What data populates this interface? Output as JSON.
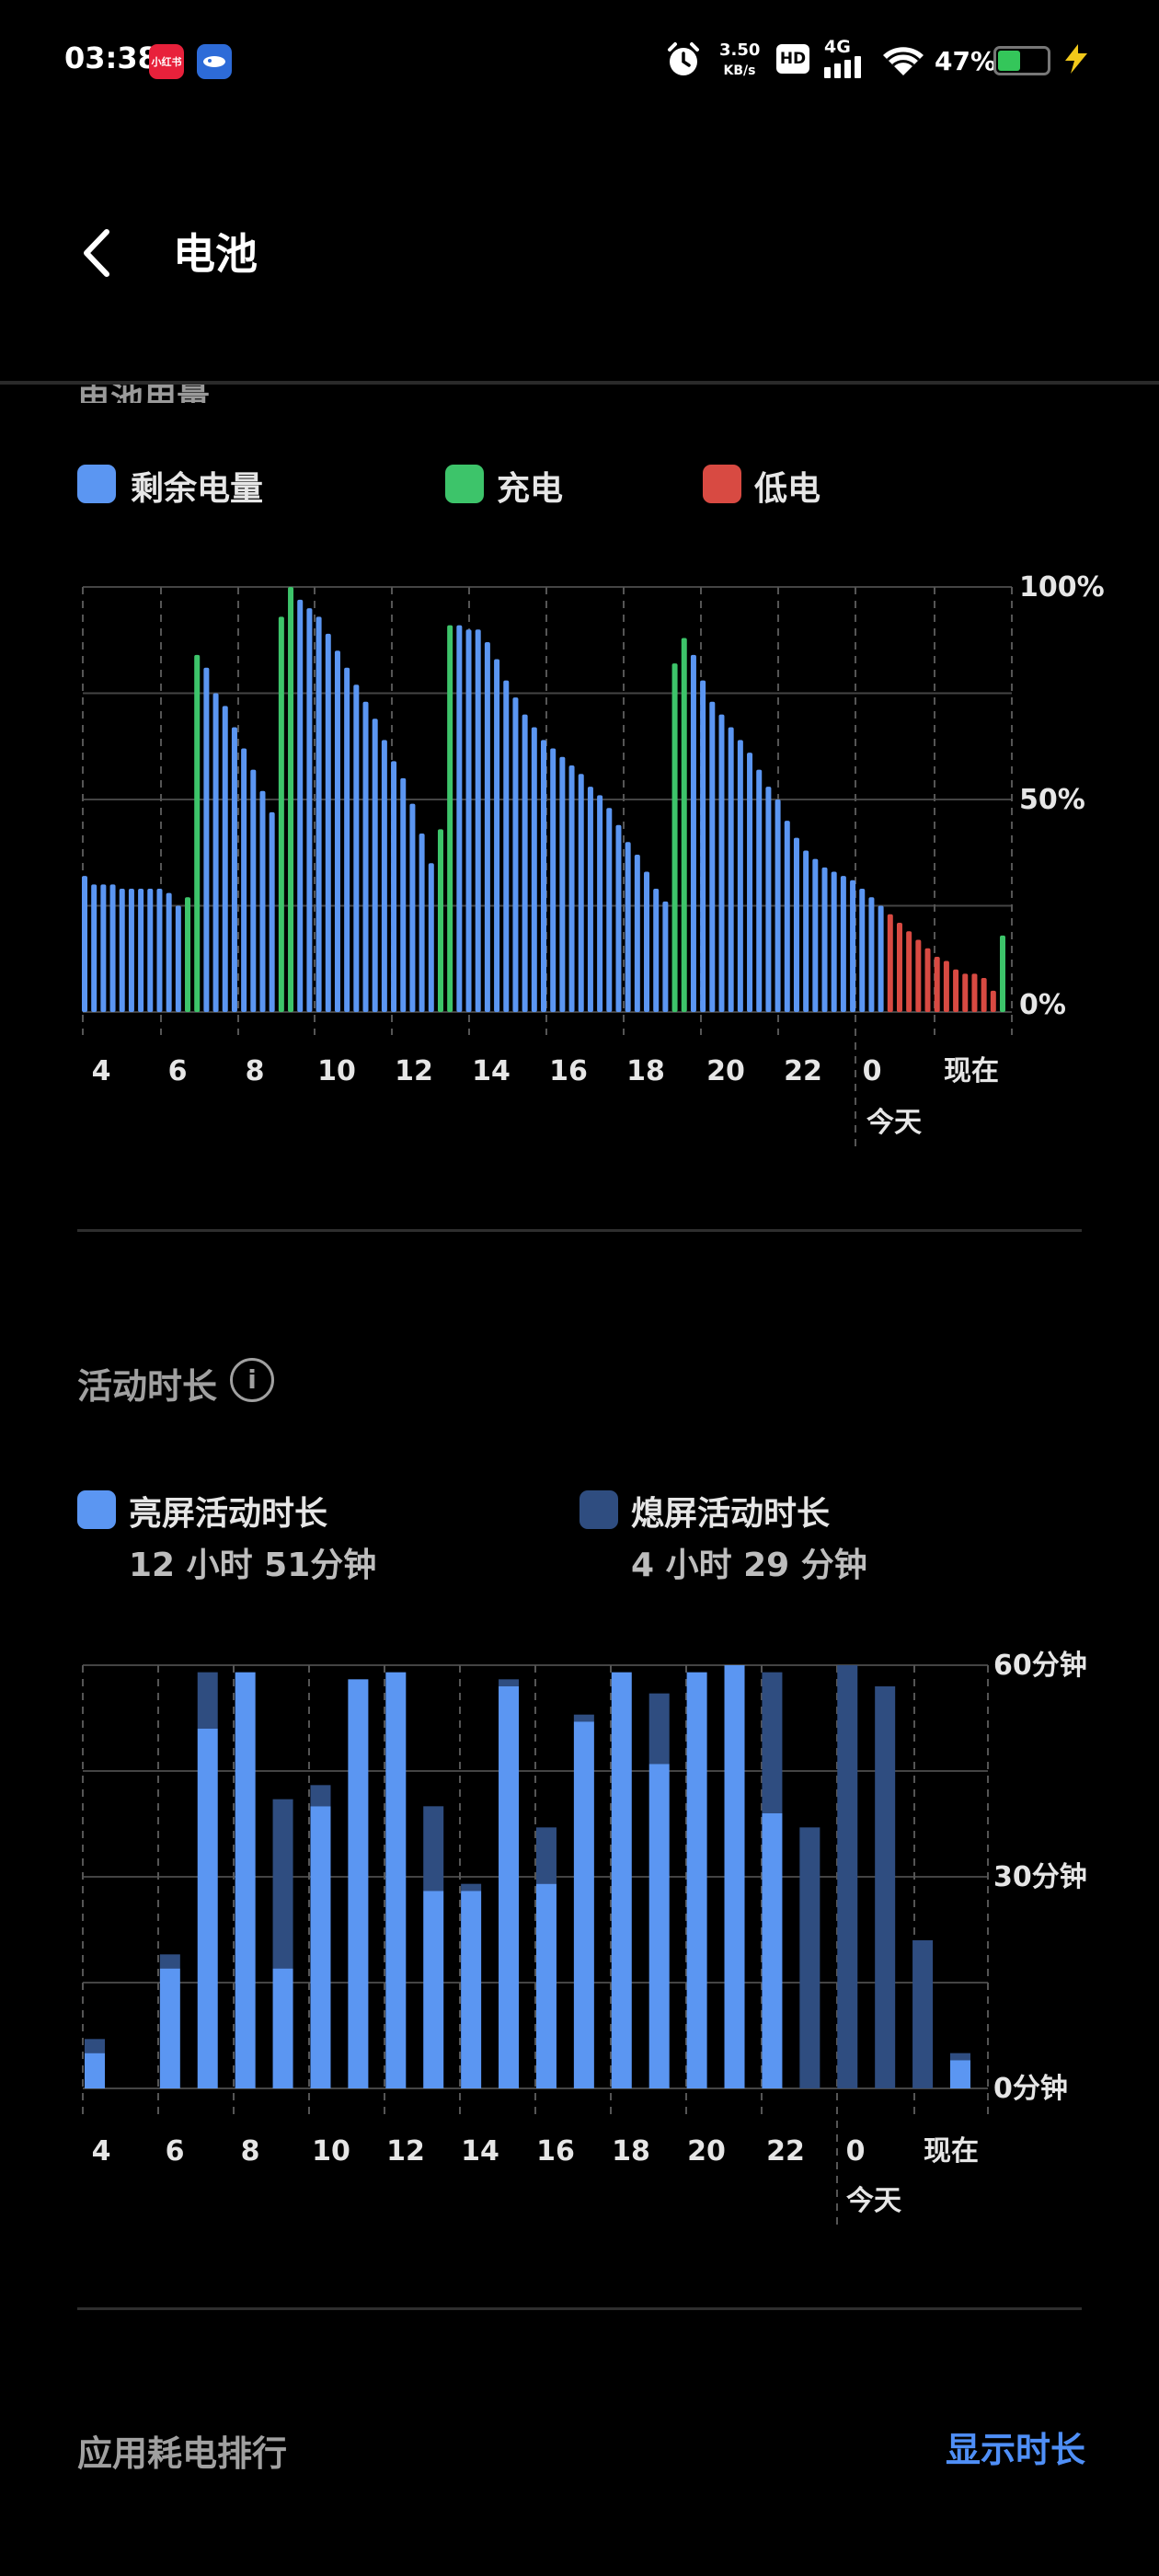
{
  "status": {
    "time": "03:38",
    "app1_label": "小红书",
    "app1_color": "#e8213b",
    "app2_color": "#2d6bd8",
    "net_speed_value": "3.50",
    "net_speed_unit": "KB/s",
    "hd": "HD",
    "network": "4G",
    "battery_pct": "47%",
    "battery_level": 0.47,
    "battery_color": "#34c65a"
  },
  "header": {
    "title": "电池"
  },
  "usage": {
    "title_cut": "电池用量",
    "legend": [
      {
        "label": "剩余电量",
        "color": "#5b96f2"
      },
      {
        "label": "充电",
        "color": "#3dc46a"
      },
      {
        "label": "低电",
        "color": "#d84a42"
      }
    ]
  },
  "activity": {
    "title": "活动时长",
    "info_icon": "info-icon",
    "legend": [
      {
        "label": "亮屏活动时长",
        "value": "12 小时 51分钟",
        "color": "#5b96f2"
      },
      {
        "label": "熄屏活动时长",
        "value": "4 小时 29 分钟",
        "color": "#2f4d80"
      }
    ]
  },
  "ranking": {
    "title": "应用耗电排行",
    "action": "显示时长"
  },
  "chart_data": [
    {
      "type": "bar",
      "name": "battery-level",
      "y_tick_labels": [
        "100%",
        "50%",
        "0%"
      ],
      "ylim": [
        0,
        100
      ],
      "x_tick_labels": [
        "4",
        "6",
        "8",
        "10",
        "12",
        "14",
        "16",
        "18",
        "20",
        "22",
        "0",
        "现在"
      ],
      "x_sublabel": "今天",
      "grid": true,
      "colors": {
        "remaining": "#5b96f2",
        "charging": "#3dc46a",
        "low": "#d84a42"
      },
      "levels": [
        32,
        30,
        30,
        30,
        29,
        29,
        29,
        29,
        29,
        28,
        25,
        27,
        84,
        81,
        75,
        72,
        67,
        62,
        57,
        52,
        47,
        93,
        100,
        97,
        95,
        93,
        89,
        85,
        81,
        77,
        73,
        69,
        64,
        59,
        55,
        49,
        42,
        35,
        43,
        91,
        91,
        90,
        90,
        87,
        83,
        78,
        74,
        70,
        67,
        64,
        62,
        60,
        58,
        56,
        53,
        51,
        48,
        44,
        40,
        37,
        33,
        29,
        26,
        82,
        88,
        84,
        78,
        73,
        70,
        67,
        64,
        61,
        57,
        53,
        50,
        45,
        41,
        38,
        36,
        34,
        33,
        32,
        31,
        29,
        27,
        25,
        23,
        21,
        19,
        17,
        15,
        13,
        12,
        10,
        9,
        9,
        8,
        5,
        18
      ],
      "status": [
        "r",
        "r",
        "r",
        "r",
        "r",
        "r",
        "r",
        "r",
        "r",
        "r",
        "r",
        "c",
        "c",
        "r",
        "r",
        "r",
        "r",
        "r",
        "r",
        "r",
        "r",
        "c",
        "c",
        "r",
        "r",
        "r",
        "r",
        "r",
        "r",
        "r",
        "r",
        "r",
        "r",
        "r",
        "r",
        "r",
        "r",
        "r",
        "c",
        "c",
        "r",
        "r",
        "r",
        "r",
        "r",
        "r",
        "r",
        "r",
        "r",
        "r",
        "r",
        "r",
        "r",
        "r",
        "r",
        "r",
        "r",
        "r",
        "r",
        "r",
        "r",
        "r",
        "r",
        "c",
        "c",
        "r",
        "r",
        "r",
        "r",
        "r",
        "r",
        "r",
        "r",
        "r",
        "r",
        "r",
        "r",
        "r",
        "r",
        "r",
        "r",
        "r",
        "r",
        "r",
        "r",
        "r",
        "l",
        "l",
        "l",
        "l",
        "l",
        "l",
        "l",
        "l",
        "l",
        "l",
        "l",
        "l",
        "c"
      ]
    },
    {
      "type": "bar",
      "name": "screen-activity",
      "stacked": true,
      "y_tick_labels": [
        "60分钟",
        "30分钟",
        "0分钟"
      ],
      "ylim": [
        0,
        60
      ],
      "x_tick_labels": [
        "4",
        "6",
        "8",
        "10",
        "12",
        "14",
        "16",
        "18",
        "20",
        "22",
        "0",
        "现在"
      ],
      "x_sublabel": "今天",
      "grid": true,
      "series": [
        {
          "name": "亮屏活动时长",
          "color": "#5b96f2",
          "values": [
            5,
            0,
            17,
            51,
            59,
            17,
            40,
            58,
            59,
            28,
            28,
            57,
            29,
            52,
            59,
            46,
            59,
            60,
            39,
            0,
            0,
            0,
            0,
            4
          ]
        },
        {
          "name": "熄屏活动时长",
          "color": "#2f4d80",
          "values": [
            2,
            0,
            2,
            8,
            0,
            24,
            3,
            0,
            0,
            12,
            1,
            1,
            8,
            1,
            0,
            10,
            0,
            0,
            20,
            37,
            60,
            57,
            21,
            1
          ]
        }
      ]
    }
  ]
}
